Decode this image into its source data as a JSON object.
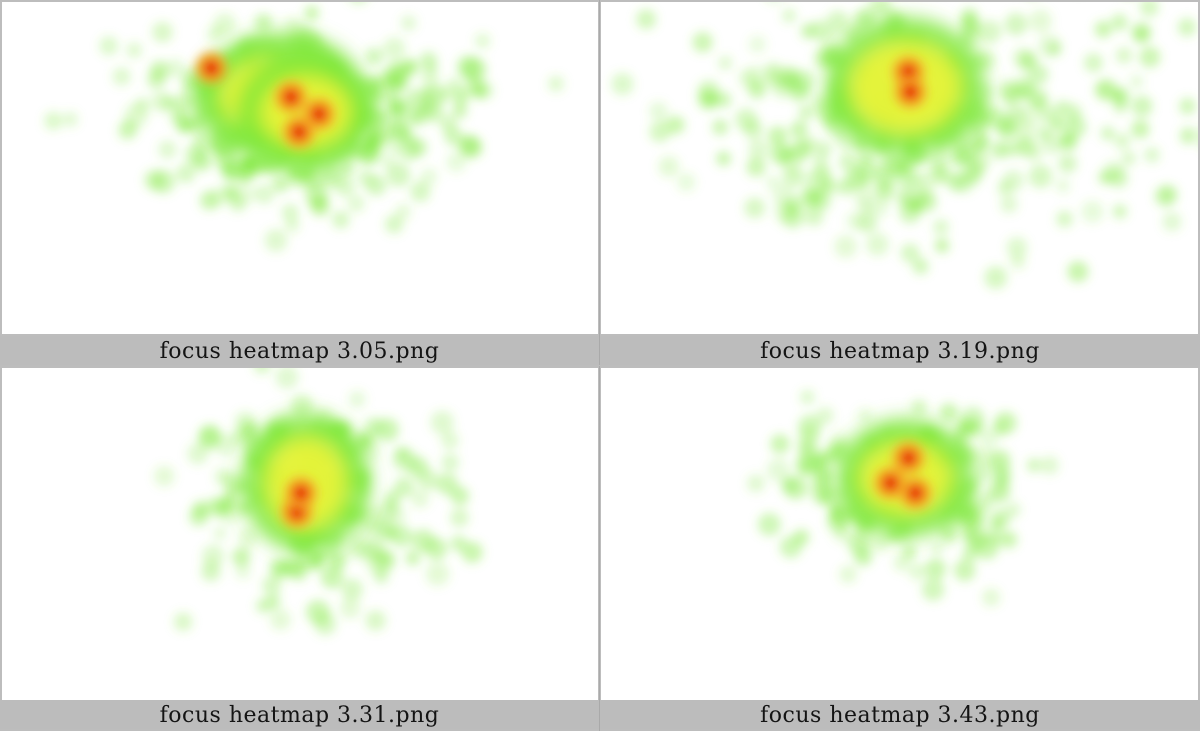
{
  "colors": {
    "background": "#bdbdbd",
    "image_background": "#ffffff",
    "heat_low": "#7ee83a",
    "heat_mid": "#f5f53a",
    "heat_high": "#f5a623",
    "heat_peak": "#e60000"
  },
  "thumbnails": [
    {
      "caption": "focus heatmap 3.05.png"
    },
    {
      "caption": "focus heatmap 3.19.png"
    },
    {
      "caption": "focus heatmap 3.31.png"
    },
    {
      "caption": "focus heatmap 3.43.png"
    }
  ]
}
